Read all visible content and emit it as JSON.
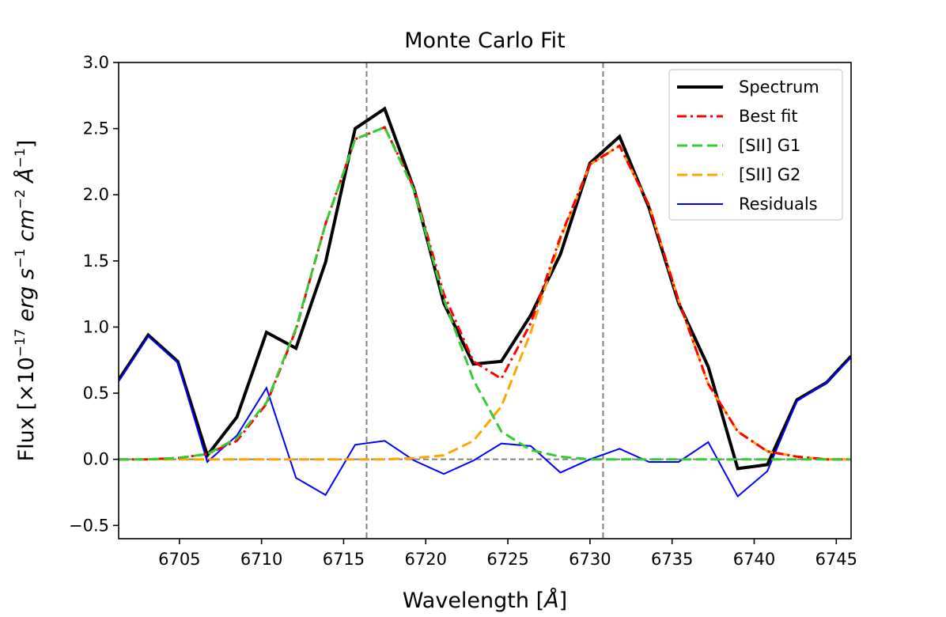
{
  "chart_data": {
    "type": "line",
    "title": "Monte Carlo Fit",
    "xlabel": {
      "base": "Wavelength [",
      "unit": "Å",
      "close": "]"
    },
    "ylabel": {
      "prefix": "Flux [×10",
      "exp1": "−17",
      "erg": " erg s",
      "exp2": "−1",
      "cm": " cm",
      "exp3": "−2",
      "ang": " Å",
      "exp4": "−1",
      "close": "]"
    },
    "xlim": [
      6701.3,
      6745.9
    ],
    "ylim": [
      -0.6,
      3.0
    ],
    "xticks": [
      6705,
      6710,
      6715,
      6720,
      6725,
      6730,
      6735,
      6740,
      6745
    ],
    "xtick_labels": [
      "6705",
      "6710",
      "6715",
      "6720",
      "6725",
      "6730",
      "6735",
      "6740",
      "6745"
    ],
    "yticks": [
      -0.5,
      0.0,
      0.5,
      1.0,
      1.5,
      2.0,
      2.5,
      3.0
    ],
    "ytick_labels": [
      "−0.5",
      "0.0",
      "0.5",
      "1.0",
      "1.5",
      "2.0",
      "2.5",
      "3.0"
    ],
    "vlines": [
      6716.4,
      6730.8
    ],
    "hline": 0.0,
    "legend_position": "top-right",
    "series": [
      {
        "name": "Spectrum",
        "color": "#000000",
        "style": "solid",
        "x": [
          6701.3,
          6703.1,
          6704.9,
          6706.7,
          6708.5,
          6710.3,
          6712.1,
          6713.9,
          6715.7,
          6717.5,
          6719.3,
          6721.1,
          6722.9,
          6724.6,
          6726.4,
          6728.2,
          6730.0,
          6731.8,
          6733.6,
          6735.4,
          6737.2,
          6739.0,
          6740.8,
          6742.6,
          6744.4,
          6745.9
        ],
        "y": [
          0.6,
          0.94,
          0.74,
          0.03,
          0.32,
          0.96,
          0.84,
          1.49,
          2.5,
          2.65,
          2.04,
          1.18,
          0.72,
          0.74,
          1.09,
          1.55,
          2.24,
          2.44,
          1.9,
          1.18,
          0.7,
          -0.07,
          -0.04,
          0.45,
          0.58,
          0.78
        ]
      },
      {
        "name": "Best fit",
        "color": "#ff0000",
        "style": "dashdot",
        "x": [
          6701.3,
          6703.1,
          6704.9,
          6706.7,
          6708.5,
          6710.3,
          6712.1,
          6713.9,
          6715.7,
          6717.5,
          6719.3,
          6721.1,
          6722.9,
          6724.6,
          6726.4,
          6728.2,
          6730.0,
          6731.8,
          6733.6,
          6735.4,
          6737.2,
          6739.0,
          6740.8,
          6742.6,
          6744.4,
          6745.9
        ],
        "y": [
          0.0,
          0.0,
          0.01,
          0.04,
          0.14,
          0.42,
          0.98,
          1.78,
          2.42,
          2.51,
          2.05,
          1.25,
          0.74,
          0.61,
          1.03,
          1.68,
          2.23,
          2.37,
          1.92,
          1.2,
          0.57,
          0.21,
          0.06,
          0.02,
          0.0,
          0.0
        ]
      },
      {
        "name": "[SII] G1",
        "color": "#33cc33",
        "style": "dashed",
        "x": [
          6701.3,
          6703.1,
          6704.9,
          6706.7,
          6708.5,
          6710.3,
          6712.1,
          6713.9,
          6715.7,
          6717.5,
          6719.3,
          6721.1,
          6722.9,
          6724.6,
          6726.4,
          6728.2,
          6730.0,
          6731.8,
          6733.6,
          6735.4,
          6737.2,
          6739.0,
          6740.8,
          6742.6,
          6744.4,
          6745.9
        ],
        "y": [
          0.0,
          0.0,
          0.01,
          0.04,
          0.16,
          0.43,
          0.99,
          1.78,
          2.42,
          2.51,
          2.03,
          1.21,
          0.6,
          0.21,
          0.07,
          0.02,
          0.0,
          0.0,
          0.0,
          0.0,
          0.0,
          0.0,
          0.0,
          0.0,
          0.0,
          0.0
        ]
      },
      {
        "name": "[SII] G2",
        "color": "#ffa500",
        "style": "dashed",
        "x": [
          6701.3,
          6703.1,
          6704.9,
          6706.7,
          6708.5,
          6710.3,
          6712.1,
          6713.9,
          6715.7,
          6717.5,
          6719.3,
          6721.1,
          6722.9,
          6724.6,
          6726.4,
          6728.2,
          6730.0,
          6731.8,
          6733.6,
          6735.4,
          6737.2,
          6739.0,
          6740.8,
          6742.6,
          6744.4,
          6745.9
        ],
        "y": [
          0.0,
          0.0,
          0.0,
          0.0,
          0.0,
          0.0,
          0.0,
          0.0,
          0.0,
          0.0,
          0.01,
          0.03,
          0.14,
          0.4,
          0.96,
          1.66,
          2.23,
          2.37,
          1.92,
          1.2,
          0.57,
          0.21,
          0.06,
          0.02,
          0.0,
          0.0
        ]
      },
      {
        "name": "Residuals",
        "color": "#0000ff",
        "style": "thin",
        "x": [
          6701.3,
          6703.1,
          6704.9,
          6706.7,
          6708.5,
          6710.3,
          6712.1,
          6713.9,
          6715.7,
          6717.5,
          6719.3,
          6721.1,
          6722.9,
          6724.6,
          6726.4,
          6728.2,
          6730.0,
          6731.8,
          6733.6,
          6735.4,
          6737.2,
          6739.0,
          6740.8,
          6742.6,
          6744.4,
          6745.9
        ],
        "y": [
          0.59,
          0.93,
          0.73,
          -0.02,
          0.18,
          0.54,
          -0.14,
          -0.27,
          0.11,
          0.14,
          -0.01,
          -0.11,
          -0.01,
          0.12,
          0.1,
          -0.1,
          0.0,
          0.08,
          -0.02,
          -0.02,
          0.13,
          -0.28,
          -0.09,
          0.44,
          0.58,
          0.77
        ]
      }
    ]
  }
}
